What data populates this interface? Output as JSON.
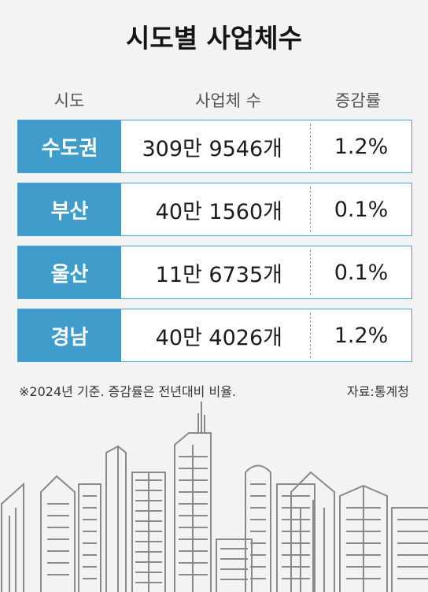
{
  "chart_data": {
    "type": "table",
    "title": "시도별 사업체수",
    "columns": [
      "시도",
      "사업체 수",
      "증감률"
    ],
    "rows": [
      {
        "region": "수도권",
        "count": "309만 9546개",
        "rate": "1.2%"
      },
      {
        "region": "부산",
        "count": "40만 1560개",
        "rate": "0.1%"
      },
      {
        "region": "울산",
        "count": "11만 6735개",
        "rate": "0.1%"
      },
      {
        "region": "경남",
        "count": "40만 4026개",
        "rate": "1.2%"
      }
    ],
    "note": "※2024년 기준. 증감률은 전년대비 비율.",
    "source": "자료:통계청"
  },
  "colors": {
    "accent": "#3f9ccb",
    "border": "#4aa3cf",
    "background": "#f3f3f3",
    "skyline": "#8a8a8a"
  }
}
